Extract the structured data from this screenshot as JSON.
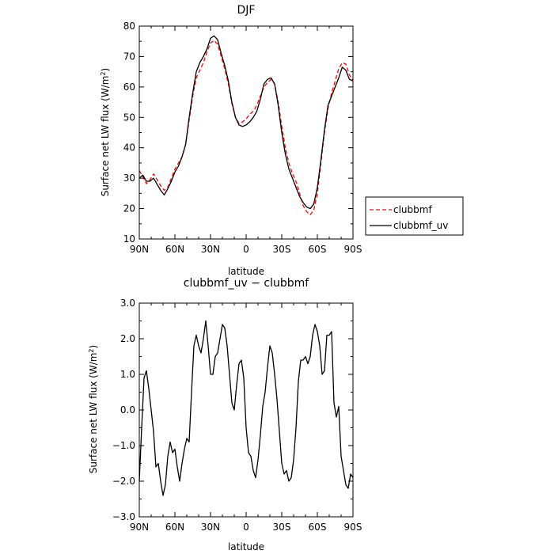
{
  "chart_data": [
    {
      "type": "line",
      "title": "DJF",
      "xlabel": "latitude",
      "ylabel": "Surface net LW flux (W/m",
      "ylabel_sup": "2",
      "ylabel_close": ")",
      "xlim": [
        90,
        -90
      ],
      "ylim": [
        10,
        80
      ],
      "x_ticks": [
        {
          "value": 90,
          "label": "90N"
        },
        {
          "value": 60,
          "label": "60N"
        },
        {
          "value": 30,
          "label": "30N"
        },
        {
          "value": 0,
          "label": "0"
        },
        {
          "value": -30,
          "label": "30S"
        },
        {
          "value": -60,
          "label": "60S"
        },
        {
          "value": -90,
          "label": "90S"
        }
      ],
      "y_ticks": [
        {
          "value": 10,
          "label": "10"
        },
        {
          "value": 20,
          "label": "20"
        },
        {
          "value": 30,
          "label": "30"
        },
        {
          "value": 40,
          "label": "40"
        },
        {
          "value": 50,
          "label": "50"
        },
        {
          "value": 60,
          "label": "60"
        },
        {
          "value": 70,
          "label": "70"
        },
        {
          "value": 80,
          "label": "80"
        }
      ],
      "legend": {
        "placement": "right"
      },
      "series": [
        {
          "name": "clubbmf",
          "color": "#ff0000",
          "dash": "dashed",
          "x": [
            90,
            87,
            84,
            81,
            78,
            75,
            72,
            69,
            66,
            63,
            60,
            57,
            54,
            51,
            48,
            45,
            42,
            39,
            36,
            33,
            30,
            27,
            24,
            21,
            18,
            15,
            12,
            9,
            6,
            3,
            0,
            -3,
            -6,
            -9,
            -12,
            -15,
            -18,
            -21,
            -24,
            -27,
            -30,
            -33,
            -36,
            -39,
            -42,
            -45,
            -48,
            -51,
            -54,
            -57,
            -60,
            -63,
            -66,
            -69,
            -72,
            -75,
            -78,
            -81,
            -84,
            -87,
            -90
          ],
          "y": [
            32.5,
            30.5,
            28.2,
            29.5,
            31.4,
            29.5,
            27.5,
            26.0,
            27.0,
            30.0,
            33.0,
            35.0,
            37.0,
            41.0,
            49.0,
            57.0,
            63.0,
            65.5,
            68.0,
            71.5,
            74.5,
            75.3,
            74.0,
            70.0,
            66.0,
            61.0,
            54.5,
            50.0,
            48.0,
            48.5,
            49.5,
            51.0,
            52.0,
            54.0,
            57.0,
            60.0,
            61.5,
            62.5,
            61.0,
            55.0,
            47.0,
            40.0,
            35.0,
            31.5,
            29.0,
            25.0,
            21.0,
            19.0,
            18.0,
            19.5,
            25.0,
            35.0,
            45.0,
            53.0,
            58.0,
            62.0,
            66.0,
            68.0,
            67.5,
            64.0,
            62.0
          ]
        },
        {
          "name": "clubbmf_uv",
          "color": "#000000",
          "dash": "solid",
          "x": [
            90,
            87,
            84,
            81,
            78,
            75,
            72,
            69,
            66,
            63,
            60,
            57,
            54,
            51,
            48,
            45,
            42,
            39,
            36,
            33,
            30,
            27,
            24,
            21,
            18,
            15,
            12,
            9,
            6,
            3,
            0,
            -3,
            -6,
            -9,
            -12,
            -15,
            -18,
            -21,
            -24,
            -27,
            -30,
            -33,
            -36,
            -39,
            -42,
            -45,
            -48,
            -51,
            -54,
            -57,
            -60,
            -63,
            -66,
            -69,
            -72,
            -75,
            -78,
            -81,
            -84,
            -87,
            -90
          ],
          "y": [
            30.0,
            31.0,
            29.0,
            29.0,
            30.0,
            28.0,
            26.0,
            24.5,
            26.5,
            29.0,
            32.0,
            34.0,
            37.0,
            41.0,
            50.0,
            58.0,
            65.0,
            68.0,
            70.0,
            72.5,
            76.0,
            76.8,
            75.5,
            71.0,
            67.0,
            62.0,
            55.0,
            50.0,
            47.5,
            47.0,
            47.5,
            48.5,
            50.0,
            52.0,
            56.0,
            61.0,
            62.5,
            63.0,
            61.0,
            54.0,
            45.0,
            38.0,
            33.0,
            30.0,
            27.0,
            24.0,
            22.0,
            20.5,
            20.0,
            21.5,
            27.0,
            36.0,
            46.0,
            54.0,
            57.0,
            60.0,
            63.0,
            66.5,
            65.5,
            62.5,
            62.0
          ]
        }
      ]
    },
    {
      "type": "line",
      "title": "clubbmf_uv − clubbmf",
      "xlabel": "latitude",
      "ylabel": "Surface net LW flux (W/m",
      "ylabel_sup": "2",
      "ylabel_close": ")",
      "xlim": [
        90,
        -90
      ],
      "ylim": [
        -3.0,
        3.0
      ],
      "x_ticks": [
        {
          "value": 90,
          "label": "90N"
        },
        {
          "value": 60,
          "label": "60N"
        },
        {
          "value": 30,
          "label": "30N"
        },
        {
          "value": 0,
          "label": "0"
        },
        {
          "value": -30,
          "label": "30S"
        },
        {
          "value": -60,
          "label": "60S"
        },
        {
          "value": -90,
          "label": "90S"
        }
      ],
      "y_ticks": [
        {
          "value": -3.0,
          "label": "−3.0"
        },
        {
          "value": -2.0,
          "label": "−2.0"
        },
        {
          "value": -1.0,
          "label": "−1.0"
        },
        {
          "value": 0.0,
          "label": "0.0"
        },
        {
          "value": 1.0,
          "label": "1.0"
        },
        {
          "value": 2.0,
          "label": "2.0"
        },
        {
          "value": 3.0,
          "label": "3.0"
        }
      ],
      "series": [
        {
          "color": "#000000",
          "dash": "solid",
          "x": [
            90,
            88,
            86,
            84,
            82,
            80,
            78,
            76,
            74,
            72,
            70,
            68,
            66,
            64,
            62,
            60,
            58,
            56,
            54,
            52,
            50,
            48,
            46,
            44,
            42,
            40,
            38,
            36,
            34,
            32,
            30,
            28,
            26,
            24,
            22,
            20,
            18,
            16,
            14,
            12,
            10,
            8,
            6,
            4,
            2,
            0,
            -2,
            -4,
            -6,
            -8,
            -10,
            -12,
            -14,
            -16,
            -18,
            -20,
            -22,
            -24,
            -26,
            -28,
            -30,
            -32,
            -34,
            -36,
            -38,
            -40,
            -42,
            -44,
            -46,
            -48,
            -50,
            -52,
            -54,
            -56,
            -58,
            -60,
            -62,
            -64,
            -66,
            -68,
            -70,
            -72,
            -74,
            -76,
            -78,
            -80,
            -82,
            -84,
            -86,
            -88,
            -90
          ],
          "y": [
            -2.0,
            -0.5,
            0.9,
            1.1,
            0.6,
            0.0,
            -0.6,
            -1.6,
            -1.5,
            -2.0,
            -2.4,
            -2.1,
            -1.3,
            -0.9,
            -1.2,
            -1.1,
            -1.6,
            -2.0,
            -1.5,
            -1.1,
            -0.8,
            -0.9,
            0.5,
            1.8,
            2.1,
            1.8,
            1.6,
            2.0,
            2.5,
            1.8,
            1.0,
            1.0,
            1.5,
            1.6,
            2.0,
            2.4,
            2.3,
            1.8,
            1.0,
            0.2,
            0.0,
            0.7,
            1.3,
            1.4,
            0.9,
            -0.5,
            -1.2,
            -1.3,
            -1.7,
            -1.9,
            -1.4,
            -0.7,
            0.1,
            0.5,
            1.2,
            1.8,
            1.6,
            1.0,
            0.3,
            -0.6,
            -1.5,
            -1.8,
            -1.7,
            -2.0,
            -1.9,
            -1.4,
            -0.5,
            0.8,
            1.4,
            1.4,
            1.5,
            1.3,
            1.5,
            2.1,
            2.4,
            2.2,
            1.8,
            1.0,
            1.1,
            2.1,
            2.1,
            2.2,
            0.2,
            -0.2,
            0.1,
            -1.3,
            -1.7,
            -2.1,
            -2.2,
            -1.8,
            -1.9
          ]
        }
      ]
    }
  ]
}
